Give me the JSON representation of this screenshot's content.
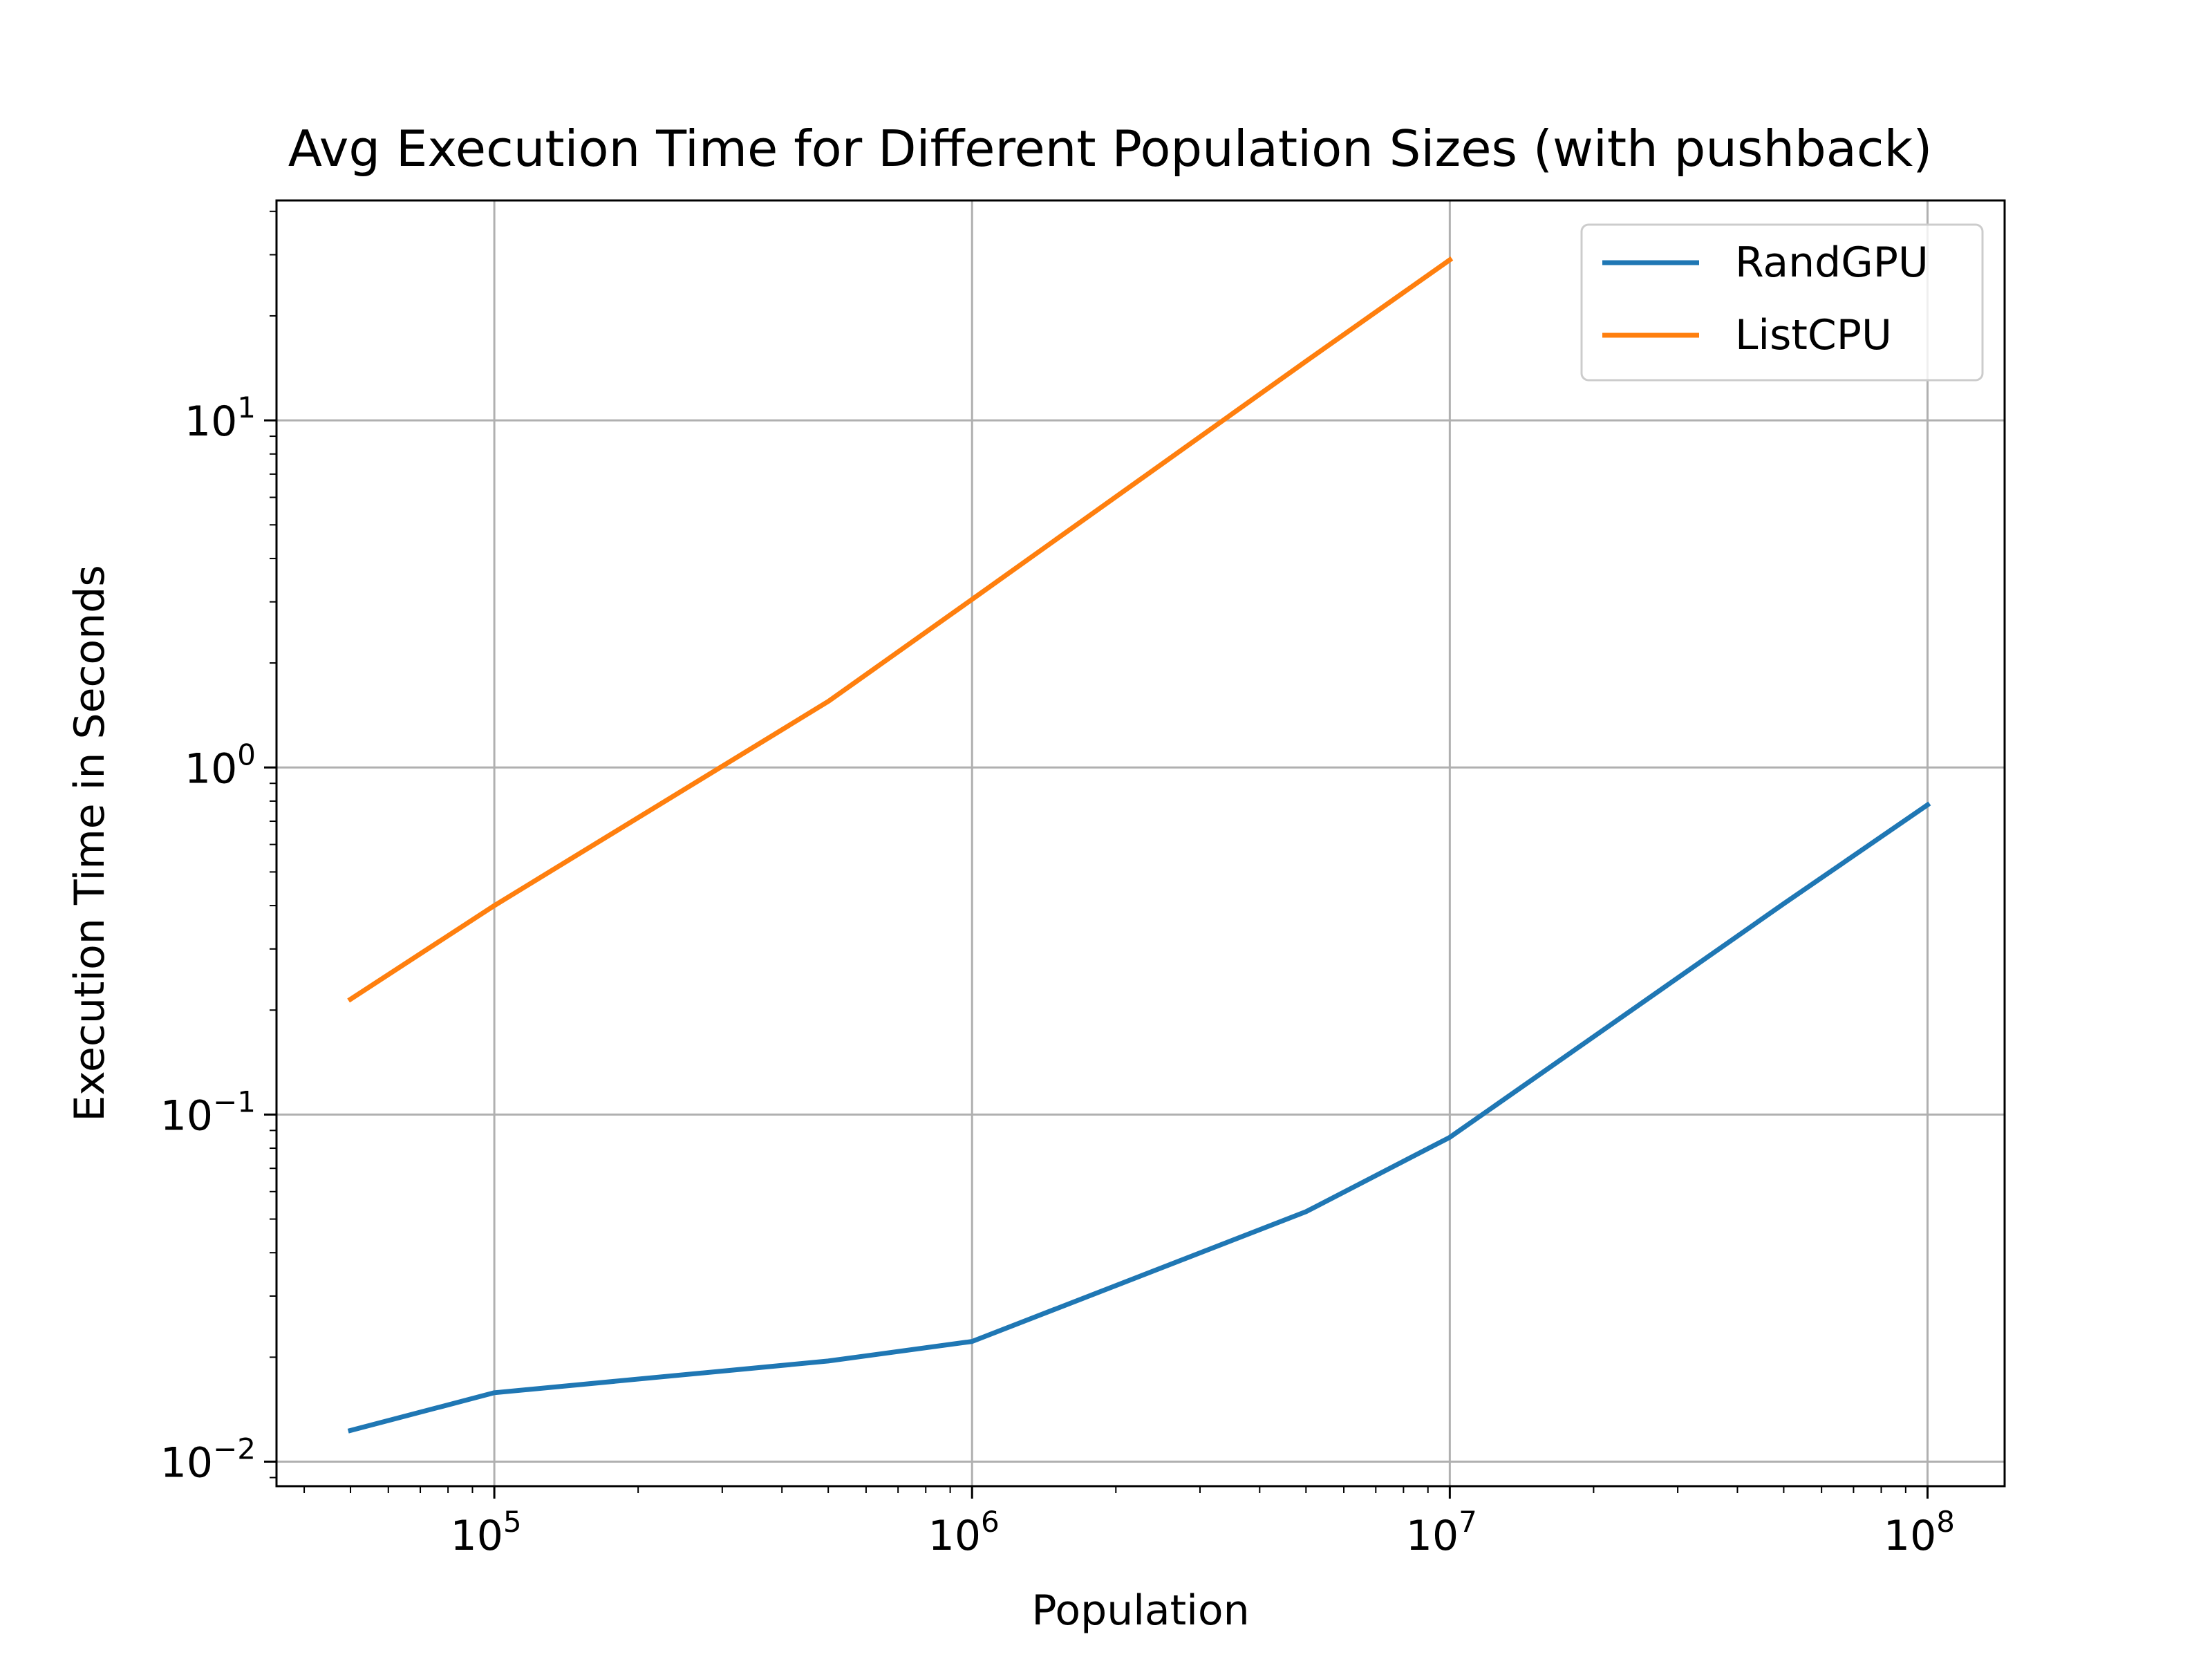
{
  "chart_data": {
    "type": "line",
    "title": "Avg Execution Time for Different Population Sizes (with pushback)",
    "xlabel": "Population",
    "ylabel": "Execution Time in Seconds",
    "xscale": "log",
    "yscale": "log",
    "xlim": [
      35000,
      145000000
    ],
    "ylim": [
      0.0085,
      43
    ],
    "grid": true,
    "legend_position": "top-right",
    "x_ticks": [
      {
        "base": "10",
        "exp": "5",
        "value": 100000
      },
      {
        "base": "10",
        "exp": "6",
        "value": 1000000
      },
      {
        "base": "10",
        "exp": "7",
        "value": 10000000
      },
      {
        "base": "10",
        "exp": "8",
        "value": 100000000
      }
    ],
    "y_ticks": [
      {
        "base": "10",
        "exp": "−2",
        "value": 0.01
      },
      {
        "base": "10",
        "exp": "−1",
        "value": 0.1
      },
      {
        "base": "10",
        "exp": "0",
        "value": 1
      },
      {
        "base": "10",
        "exp": "1",
        "value": 10
      }
    ],
    "series": [
      {
        "name": "RandGPU",
        "color": "#1f77b4",
        "x": [
          50000,
          100000,
          500000,
          1000000,
          5000000,
          10000000,
          50000000,
          100000000
        ],
        "y": [
          0.0123,
          0.0158,
          0.0195,
          0.0222,
          0.0525,
          0.086,
          0.405,
          0.78
        ]
      },
      {
        "name": "ListCPU",
        "color": "#ff7f0e",
        "x": [
          50000,
          100000,
          500000,
          1000000,
          5000000,
          10000000
        ],
        "y": [
          0.215,
          0.4,
          1.55,
          3.05,
          14.8,
          29.0
        ]
      }
    ]
  }
}
